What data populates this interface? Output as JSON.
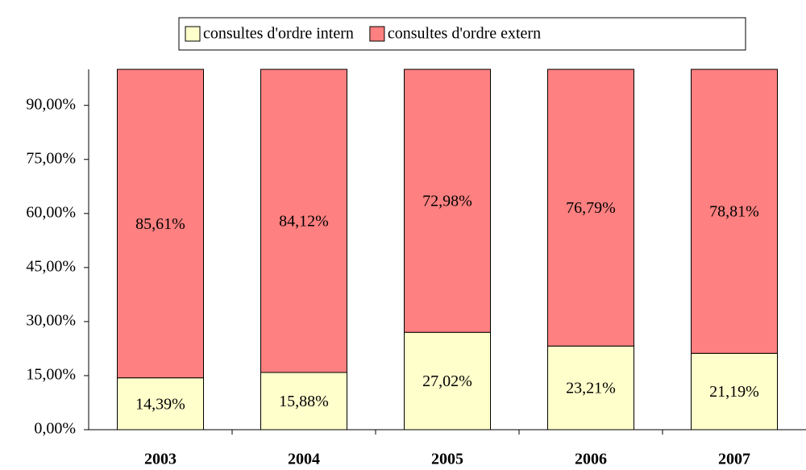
{
  "chart_data": {
    "type": "stacked_bar",
    "categories": [
      "2003",
      "2004",
      "2005",
      "2006",
      "2007"
    ],
    "series": [
      {
        "name": "consultes d'ordre intern",
        "color": "#ffffcc",
        "values": [
          14.39,
          15.88,
          27.02,
          23.21,
          21.19
        ],
        "value_labels": [
          "14,39%",
          "15,88%",
          "27,02%",
          "23,21%",
          "21,19%"
        ]
      },
      {
        "name": "consultes d'ordre extern",
        "color": "#ff8080",
        "values": [
          85.61,
          84.12,
          72.98,
          76.79,
          78.81
        ],
        "value_labels": [
          "85,61%",
          "84,12%",
          "72,98%",
          "76,79%",
          "78,81%"
        ]
      }
    ],
    "ylim": [
      0,
      100
    ],
    "yticks": [
      {
        "value": 0,
        "label": "0,00%"
      },
      {
        "value": 15,
        "label": "15,00%"
      },
      {
        "value": 30,
        "label": "30,00%"
      },
      {
        "value": 45,
        "label": "45,00%"
      },
      {
        "value": 60,
        "label": "60,00%"
      },
      {
        "value": 75,
        "label": "75,00%"
      },
      {
        "value": 90,
        "label": "90,00%"
      }
    ],
    "legend": "top"
  }
}
